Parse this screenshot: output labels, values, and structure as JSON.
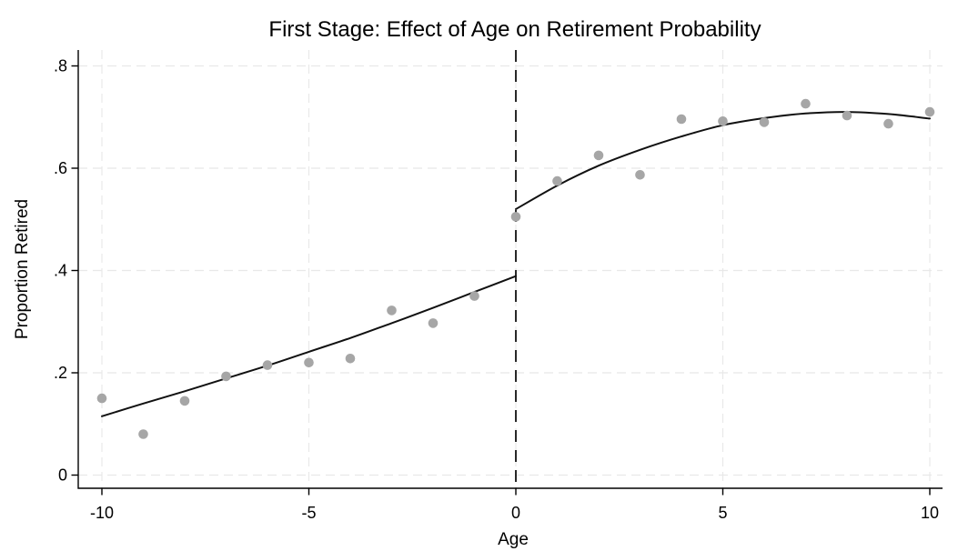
{
  "figure": {
    "title": "First Stage: Effect of Age on Retirement Probability",
    "xlabel": "Age",
    "ylabel": "Proportion Retired"
  },
  "chart_data": {
    "type": "scatter",
    "title": "First Stage: Effect of Age on Retirement Probability",
    "xlabel": "Age",
    "ylabel": "Proportion Retired",
    "xlim": [
      -10.5,
      10.5
    ],
    "ylim": [
      -0.026,
      0.83
    ],
    "x_ticks": [
      -10,
      -5,
      0,
      5,
      10
    ],
    "x_tick_labels": [
      "-10",
      "-5",
      "0",
      "5",
      "10"
    ],
    "y_ticks": [
      0,
      0.2,
      0.4,
      0.6,
      0.8
    ],
    "y_tick_labels": [
      "0",
      ".2",
      ".4",
      ".6",
      ".8"
    ],
    "grid": true,
    "grid_style": "dashed",
    "legend": false,
    "cutoff_line": {
      "x": 0,
      "style": "dashed",
      "color": "#111111"
    },
    "series": [
      {
        "name": "binned-scatter",
        "kind": "scatter",
        "color": "#a6a6a6",
        "points": [
          [
            -10,
            0.15
          ],
          [
            -9,
            0.08
          ],
          [
            -8,
            0.145
          ],
          [
            -7,
            0.193
          ],
          [
            -6,
            0.215
          ],
          [
            -5,
            0.22
          ],
          [
            -4,
            0.228
          ],
          [
            -3,
            0.322
          ],
          [
            -2,
            0.297
          ],
          [
            -1,
            0.35
          ],
          [
            0,
            0.505
          ],
          [
            1,
            0.575
          ],
          [
            2,
            0.625
          ],
          [
            3,
            0.587
          ],
          [
            4,
            0.696
          ],
          [
            5,
            0.692
          ],
          [
            6,
            0.69
          ],
          [
            7,
            0.726
          ],
          [
            8,
            0.703
          ],
          [
            9,
            0.687
          ],
          [
            10,
            0.71
          ]
        ]
      },
      {
        "name": "fit-left-of-cutoff",
        "kind": "line",
        "color": "#111111",
        "points": [
          [
            -10,
            0.115
          ],
          [
            -9,
            0.14
          ],
          [
            -8,
            0.164
          ],
          [
            -7,
            0.189
          ],
          [
            -6,
            0.214
          ],
          [
            -5,
            0.241
          ],
          [
            -4,
            0.268
          ],
          [
            -3,
            0.297
          ],
          [
            -2,
            0.327
          ],
          [
            -1,
            0.358
          ],
          [
            0,
            0.389
          ]
        ]
      },
      {
        "name": "fit-right-of-cutoff",
        "kind": "line",
        "color": "#111111",
        "points": [
          [
            0,
            0.52
          ],
          [
            1,
            0.566
          ],
          [
            2,
            0.605
          ],
          [
            3,
            0.636
          ],
          [
            4,
            0.662
          ],
          [
            5,
            0.684
          ],
          [
            6,
            0.698
          ],
          [
            7,
            0.707
          ],
          [
            8,
            0.71
          ],
          [
            9,
            0.706
          ],
          [
            10,
            0.697
          ]
        ]
      }
    ],
    "colors": {
      "background": "#ffffff",
      "axis": "#000000",
      "grid": "#e8e8e8",
      "scatter": "#a6a6a6",
      "fit_line": "#111111",
      "cutoff": "#111111",
      "text": "#000000"
    }
  }
}
